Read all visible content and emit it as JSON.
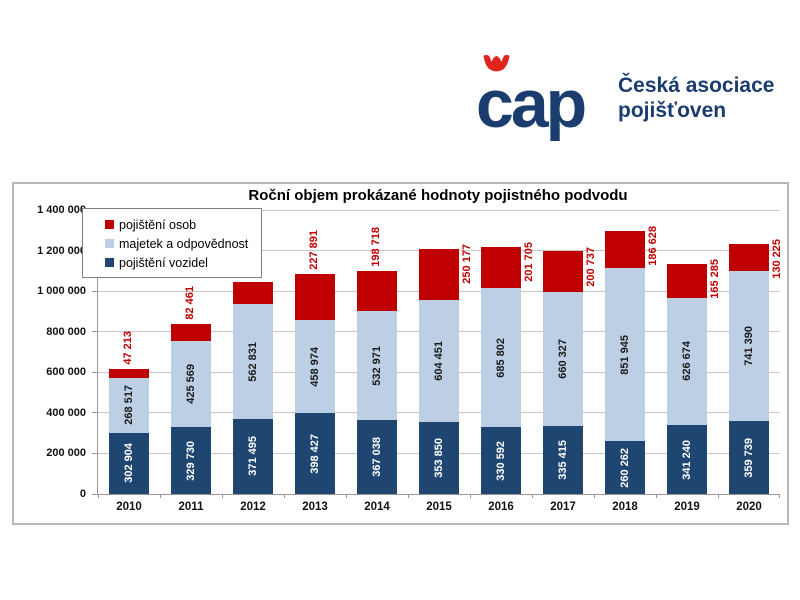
{
  "logo": {
    "wordmark": "čap",
    "wordmark_letters": "cap",
    "org_line1": "Česká asociace",
    "org_line2": "pojišťoven",
    "navy": "#1b3c6e",
    "red": "#e0251c",
    "crown_icon": "red-crown-hacek"
  },
  "chart_data": {
    "type": "bar",
    "stacked": true,
    "title": "Roční objem prokázané hodnoty pojistného podvodu",
    "categories": [
      "2010",
      "2011",
      "2012",
      "2013",
      "2014",
      "2015",
      "2016",
      "2017",
      "2018",
      "2019",
      "2020"
    ],
    "series": [
      {
        "name": "pojištění vozidel",
        "color": "#1f4571",
        "label_color": "#ffffff",
        "values": [
          302904,
          329730,
          371495,
          398427,
          367038,
          353850,
          330592,
          335415,
          260262,
          341240,
          359739
        ]
      },
      {
        "name": "majetek a odpovědnost",
        "color": "#bccfe5",
        "label_color": "#1a1a1a",
        "values": [
          268517,
          425569,
          562831,
          458974,
          532971,
          604451,
          685802,
          660327,
          851945,
          626674,
          741390
        ]
      },
      {
        "name": "pojištění osob",
        "color": "#c00000",
        "label_color": "#c00000",
        "values": [
          47213,
          82461,
          111171,
          227891,
          198718,
          250177,
          201705,
          200737,
          186628,
          165285,
          130225
        ]
      }
    ],
    "legend": [
      {
        "label": "pojištění osob",
        "color": "#c00000"
      },
      {
        "label": "majetek a odpovědnost",
        "color": "#bccfe5"
      },
      {
        "label": "pojištění vozidel",
        "color": "#1f4571"
      }
    ],
    "legend_position": "top-left-inside",
    "ylim": [
      0,
      1400000
    ],
    "y_tick_step": 200000,
    "y_tick_labels": [
      "0",
      "200 000",
      "400 000",
      "600 000",
      "800 000",
      "1 000 000",
      "1 200 000",
      "1 400 000"
    ],
    "grid": true,
    "value_labels_rotated": true,
    "colors": {
      "gridline": "#c8c8c8",
      "axis": "#999999",
      "frame_border": "#b7b7b7",
      "outside_label": "#c00000"
    }
  }
}
